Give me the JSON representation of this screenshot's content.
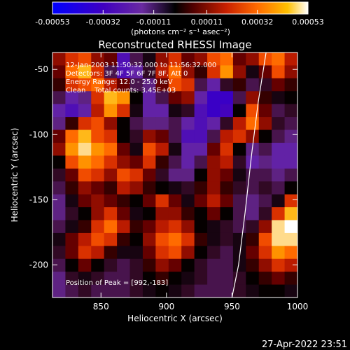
{
  "colorbar": {
    "tick_labels": [
      "-0.00053",
      "-0.00032",
      "-0.00011",
      "0.00011",
      "0.00032",
      "0.00053"
    ],
    "tick_values": [
      -0.00053,
      -0.00032,
      -0.00011,
      0.00011,
      0.00032,
      0.00053
    ],
    "range": [
      -0.00053,
      0.00053
    ],
    "unit_label": "(photons cm⁻² s⁻¹ asec⁻²)"
  },
  "annotation_lines": [
    "12-Jan-2003 11:50:32.000 to 11:56:32.000",
    "Detectors: 3F 4F 5F 6F 7F 8F, Att 0",
    "Energy Range: 12.0 - 25.0 keV",
    "Clean    Total counts: 3.45E+03"
  ],
  "peak_label": "Position of Peak = [992,-183]",
  "footer_timestamp": "27-Apr-2022 23:51",
  "colors": {
    "background": "#000000",
    "text": "#ffffff",
    "colormap": [
      "#0000ff",
      "#4000c0",
      "#6a2aa0",
      "#3a0a2a",
      "#000000",
      "#6a0000",
      "#c82000",
      "#ff5a00",
      "#ffb000",
      "#ffffff"
    ]
  },
  "chart_data": {
    "type": "heatmap",
    "title": "Reconstructed RHESSI Image",
    "xlabel": "Heliocentric X (arcsec)",
    "ylabel": "Heliocentric Y (arcsec)",
    "xlim": [
      813,
      1000
    ],
    "ylim": [
      -225,
      -37
    ],
    "x_ticks": [
      850,
      900,
      950,
      1000
    ],
    "y_ticks": [
      -50,
      -100,
      -150,
      -200
    ],
    "x_tick_labels": [
      "850",
      "900",
      "950",
      "1000"
    ],
    "y_tick_labels": [
      "-50",
      "-100",
      "-150",
      "-200"
    ],
    "limb_curve": [
      [
        950,
        -225
      ],
      [
        955,
        -200
      ],
      [
        960,
        -160
      ],
      [
        965,
        -115
      ],
      [
        970,
        -75
      ],
      [
        976,
        -37
      ]
    ],
    "peak": [
      992,
      -183
    ],
    "grid_cols": 19,
    "grid_rows": 19,
    "intensity": [
      [
        0.6,
        0.7,
        0.75,
        0.6,
        0.55,
        0.15,
        0.3,
        0.4,
        0.6,
        0.7,
        0.55,
        0.6,
        0.75,
        0.8,
        0.55,
        0.6,
        0.75,
        0.8,
        0.65
      ],
      [
        0.55,
        0.8,
        0.9,
        0.7,
        0.3,
        0.15,
        0.2,
        0.35,
        0.65,
        0.8,
        0.6,
        0.5,
        0.7,
        0.85,
        0.6,
        0.4,
        0.55,
        0.75,
        0.6
      ],
      [
        0.5,
        0.7,
        0.75,
        0.8,
        0.65,
        0.55,
        0.3,
        0.25,
        0.55,
        0.75,
        0.7,
        0.3,
        0.2,
        0.35,
        0.5,
        0.3,
        0.35,
        0.55,
        0.5
      ],
      [
        0.3,
        0.2,
        0.25,
        0.7,
        0.9,
        0.85,
        0.45,
        0.2,
        0.3,
        0.55,
        0.6,
        0.2,
        0.1,
        0.1,
        0.3,
        0.6,
        0.5,
        0.4,
        0.45
      ],
      [
        0.2,
        0.15,
        0.2,
        0.65,
        0.85,
        0.7,
        0.4,
        0.2,
        0.2,
        0.4,
        0.35,
        0.15,
        0.1,
        0.12,
        0.45,
        0.75,
        0.55,
        0.3,
        0.35
      ],
      [
        0.25,
        0.5,
        0.7,
        0.75,
        0.6,
        0.45,
        0.3,
        0.25,
        0.25,
        0.3,
        0.2,
        0.15,
        0.2,
        0.35,
        0.65,
        0.8,
        0.6,
        0.35,
        0.3
      ],
      [
        0.55,
        0.8,
        0.9,
        0.75,
        0.7,
        0.45,
        0.35,
        0.6,
        0.55,
        0.3,
        0.15,
        0.15,
        0.3,
        0.65,
        0.7,
        0.6,
        0.45,
        0.3,
        0.25
      ],
      [
        0.6,
        0.85,
        0.95,
        0.85,
        0.8,
        0.55,
        0.4,
        0.75,
        0.65,
        0.4,
        0.2,
        0.2,
        0.55,
        0.7,
        0.45,
        0.25,
        0.3,
        0.2,
        0.2
      ],
      [
        0.45,
        0.75,
        0.85,
        0.8,
        0.7,
        0.6,
        0.55,
        0.7,
        0.5,
        0.3,
        0.2,
        0.3,
        0.6,
        0.65,
        0.35,
        0.2,
        0.25,
        0.2,
        0.2
      ],
      [
        0.35,
        0.55,
        0.75,
        0.7,
        0.6,
        0.75,
        0.7,
        0.55,
        0.35,
        0.25,
        0.25,
        0.45,
        0.6,
        0.55,
        0.4,
        0.3,
        0.3,
        0.25,
        0.3
      ],
      [
        0.3,
        0.5,
        0.6,
        0.55,
        0.5,
        0.65,
        0.6,
        0.5,
        0.45,
        0.4,
        0.35,
        0.5,
        0.6,
        0.5,
        0.35,
        0.3,
        0.35,
        0.3,
        0.45
      ],
      [
        0.25,
        0.4,
        0.55,
        0.6,
        0.55,
        0.5,
        0.45,
        0.55,
        0.7,
        0.55,
        0.4,
        0.55,
        0.65,
        0.55,
        0.3,
        0.25,
        0.3,
        0.4,
        0.7
      ],
      [
        0.25,
        0.35,
        0.45,
        0.6,
        0.7,
        0.55,
        0.4,
        0.45,
        0.6,
        0.6,
        0.5,
        0.45,
        0.55,
        0.45,
        0.3,
        0.25,
        0.35,
        0.7,
        0.9
      ],
      [
        0.3,
        0.4,
        0.5,
        0.7,
        0.8,
        0.65,
        0.5,
        0.55,
        0.65,
        0.7,
        0.6,
        0.45,
        0.4,
        0.35,
        0.3,
        0.35,
        0.6,
        0.95,
        1.0
      ],
      [
        0.4,
        0.55,
        0.65,
        0.75,
        0.7,
        0.5,
        0.45,
        0.6,
        0.75,
        0.8,
        0.7,
        0.5,
        0.4,
        0.35,
        0.4,
        0.5,
        0.75,
        0.95,
        0.95
      ],
      [
        0.35,
        0.55,
        0.7,
        0.65,
        0.5,
        0.4,
        0.4,
        0.55,
        0.7,
        0.75,
        0.6,
        0.45,
        0.35,
        0.3,
        0.4,
        0.55,
        0.7,
        0.85,
        0.8
      ],
      [
        0.3,
        0.45,
        0.55,
        0.45,
        0.35,
        0.3,
        0.35,
        0.5,
        0.6,
        0.55,
        0.45,
        0.35,
        0.3,
        0.3,
        0.4,
        0.5,
        0.6,
        0.7,
        0.65
      ],
      [
        0.25,
        0.35,
        0.4,
        0.35,
        0.3,
        0.3,
        0.35,
        0.45,
        0.5,
        0.45,
        0.4,
        0.35,
        0.3,
        0.3,
        0.35,
        0.45,
        0.5,
        0.55,
        0.5
      ],
      [
        0.25,
        0.3,
        0.35,
        0.3,
        0.3,
        0.3,
        0.35,
        0.4,
        0.45,
        0.4,
        0.35,
        0.3,
        0.3,
        0.3,
        0.35,
        0.4,
        0.45,
        0.45,
        0.4
      ]
    ]
  }
}
